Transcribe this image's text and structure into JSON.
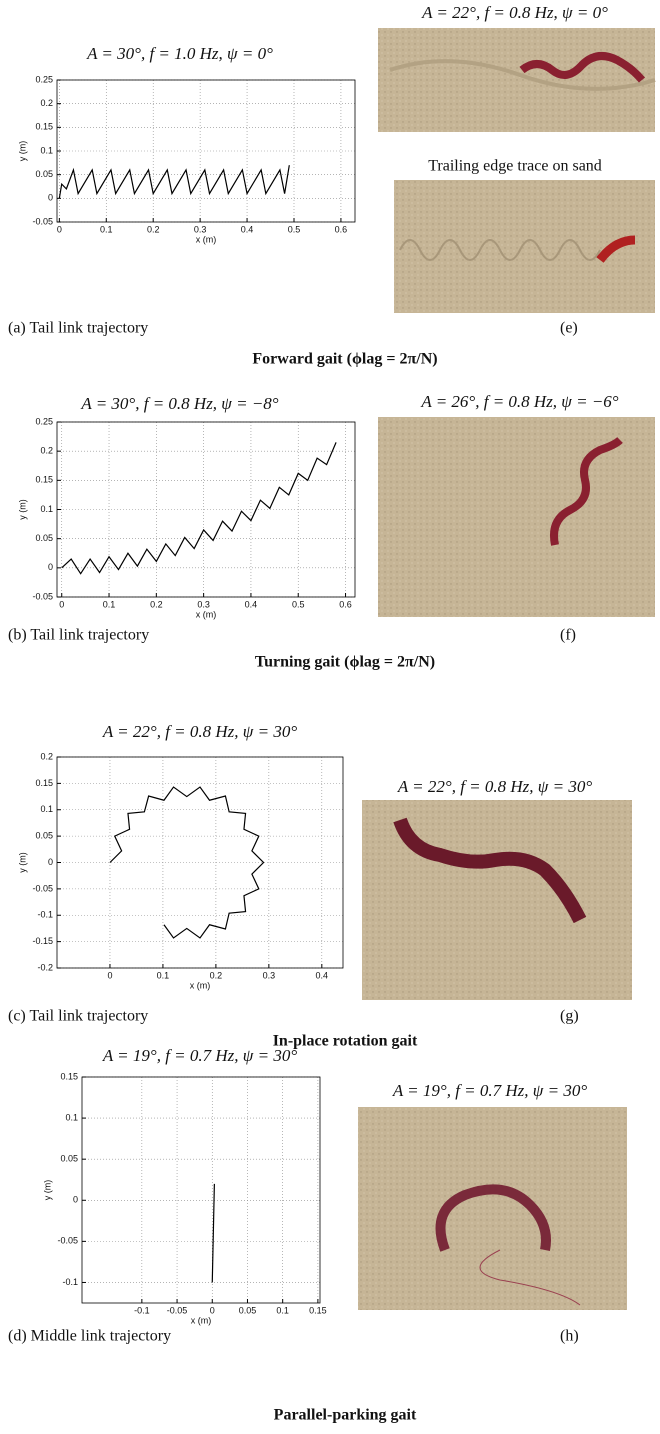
{
  "chart_data": [
    {
      "type": "line",
      "title": "A = 30°, f = 1.0 Hz, ψ = 0°",
      "x_label": "x (m)",
      "y_label": "y (m)",
      "x": [
        0,
        0.005,
        0.015,
        0.03,
        0.04,
        0.07,
        0.08,
        0.11,
        0.12,
        0.15,
        0.16,
        0.19,
        0.2,
        0.23,
        0.24,
        0.27,
        0.28,
        0.31,
        0.32,
        0.35,
        0.36,
        0.39,
        0.4,
        0.43,
        0.44,
        0.47,
        0.48,
        0.49
      ],
      "values": [
        0,
        0.03,
        0.02,
        0.06,
        0.01,
        0.06,
        0.01,
        0.06,
        0.01,
        0.06,
        0.01,
        0.06,
        0.01,
        0.06,
        0.01,
        0.06,
        0.01,
        0.06,
        0.01,
        0.06,
        0.01,
        0.06,
        0.01,
        0.06,
        0.01,
        0.06,
        0.01,
        0.07
      ],
      "color": "#000000",
      "xlim": [
        -0.005,
        0.63
      ],
      "ylim": [
        -0.05,
        0.25
      ],
      "xticks": [
        0,
        0.1,
        0.2,
        0.3,
        0.4,
        0.5,
        0.6
      ],
      "yticks": [
        -0.05,
        0,
        0.05,
        0.1,
        0.15,
        0.2,
        0.25
      ],
      "grid": true
    },
    {
      "type": "line",
      "title": "A = 30°, f = 0.8 Hz, ψ = −8°",
      "x_label": "x (m)",
      "y_label": "y (m)",
      "x": [
        0,
        0.02,
        0.04,
        0.06,
        0.08,
        0.1,
        0.12,
        0.14,
        0.16,
        0.18,
        0.2,
        0.22,
        0.24,
        0.26,
        0.28,
        0.3,
        0.32,
        0.34,
        0.36,
        0.38,
        0.4,
        0.42,
        0.44,
        0.46,
        0.48,
        0.5,
        0.52,
        0.54,
        0.56,
        0.58
      ],
      "values": [
        0,
        0.015,
        -0.01,
        0.015,
        -0.008,
        0.019,
        -0.003,
        0.025,
        0.003,
        0.032,
        0.011,
        0.041,
        0.021,
        0.052,
        0.033,
        0.065,
        0.047,
        0.08,
        0.063,
        0.097,
        0.081,
        0.116,
        0.102,
        0.138,
        0.125,
        0.162,
        0.15,
        0.188,
        0.177,
        0.215
      ],
      "color": "#000000",
      "xlim": [
        -0.01,
        0.62
      ],
      "ylim": [
        -0.05,
        0.25
      ],
      "xticks": [
        0,
        0.1,
        0.2,
        0.3,
        0.4,
        0.5,
        0.6
      ],
      "yticks": [
        -0.05,
        0,
        0.05,
        0.1,
        0.15,
        0.2,
        0.25
      ],
      "grid": true
    },
    {
      "type": "line",
      "title": "A = 22°, f = 0.8 Hz, ψ = 30°",
      "x_label": "x (m)",
      "y_label": "y (m)",
      "x": [
        0,
        0.022,
        0.009,
        0.037,
        0.034,
        0.065,
        0.073,
        0.102,
        0.12,
        0.145,
        0.17,
        0.188,
        0.218,
        0.225,
        0.256,
        0.253,
        0.281,
        0.268,
        0.29,
        0.268,
        0.281,
        0.253,
        0.256,
        0.225,
        0.218,
        0.188,
        0.17,
        0.145,
        0.12,
        0.102
      ],
      "values": [
        0,
        0.022,
        0.05,
        0.063,
        0.093,
        0.096,
        0.126,
        0.118,
        0.143,
        0.125,
        0.143,
        0.118,
        0.126,
        0.096,
        0.093,
        0.063,
        0.05,
        0.022,
        0,
        -0.022,
        -0.05,
        -0.063,
        -0.093,
        -0.096,
        -0.126,
        -0.118,
        -0.143,
        -0.125,
        -0.143,
        -0.118
      ],
      "color": "#000000",
      "xlim": [
        -0.1,
        0.44
      ],
      "ylim": [
        -0.2,
        0.2
      ],
      "xticks": [
        0,
        0.1,
        0.2,
        0.3,
        0.4
      ],
      "yticks": [
        -0.2,
        -0.15,
        -0.1,
        -0.05,
        0,
        0.05,
        0.1,
        0.15,
        0.2
      ],
      "grid": true
    },
    {
      "type": "line",
      "title": "A = 19°, f = 0.7 Hz, ψ = 30°",
      "x_label": "x (m)",
      "y_label": "y (m)",
      "x": [
        0,
        0.001,
        0.002,
        0.003
      ],
      "values": [
        -0.1,
        -0.06,
        -0.02,
        0.02
      ],
      "color": "#000000",
      "xlim": [
        -0.185,
        0.153
      ],
      "ylim": [
        -0.125,
        0.15
      ],
      "xticks": [
        -0.1,
        -0.05,
        0,
        0.05,
        0.1,
        0.15
      ],
      "yticks": [
        -0.1,
        -0.05,
        0,
        0.05,
        0.1,
        0.15
      ],
      "grid": true
    }
  ],
  "figures": [
    {
      "caption": "(a) Tail link trajectory",
      "photo_titles": [
        "A = 22°, f = 0.8 Hz, ψ = 0°",
        "Trailing edge trace on sand"
      ],
      "photo_label": "(e)",
      "gait": "Forward gait (ϕlag = 2π/N)"
    },
    {
      "caption": "(b) Tail link trajectory",
      "photo_titles": [
        "A = 26°, f = 0.8 Hz, ψ = −6°"
      ],
      "photo_label": "(f)",
      "gait": "Turning gait (ϕlag = 2π/N)"
    },
    {
      "caption": "(c) Tail link trajectory",
      "photo_titles": [
        "A = 22°, f = 0.8 Hz, ψ = 30°"
      ],
      "photo_label": "(g)",
      "gait": "In-place rotation gait"
    },
    {
      "caption": "(d) Middle link trajectory",
      "photo_titles": [
        "A = 19°, f = 0.7 Hz, ψ = 30°"
      ],
      "photo_label": "(h)",
      "gait": "Parallel-parking gait"
    }
  ]
}
